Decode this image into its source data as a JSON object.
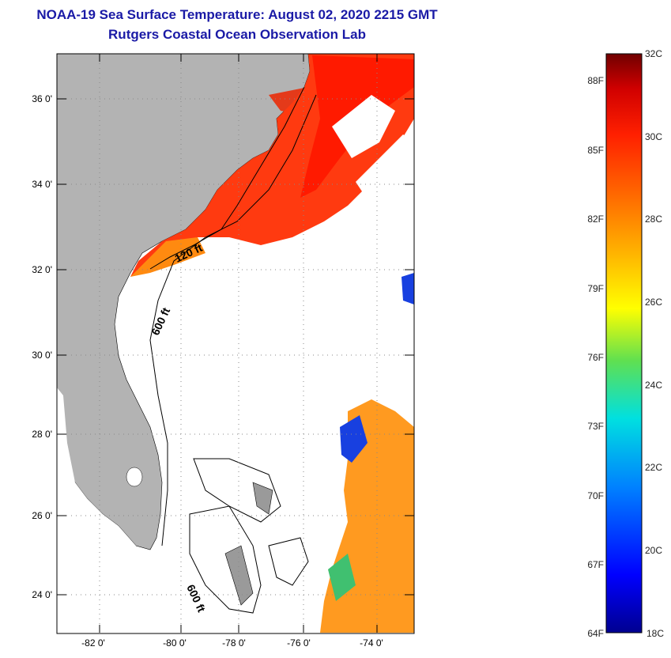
{
  "title": {
    "line1": "NOAA-19 Sea Surface Temperature:  August 02, 2020 2215 GMT",
    "line2": "Rutgers Coastal Ocean Observation Lab"
  },
  "map": {
    "lat_ticks": [
      "36 0'",
      "34 0'",
      "32 0'",
      "30 0'",
      "28 0'",
      "26 0'",
      "24 0'"
    ],
    "lon_ticks": [
      "-82 0'",
      "-80 0'",
      "-78 0'",
      "-76 0'",
      "-74 0'"
    ],
    "contour_labels": [
      "120 ft",
      "600 ft",
      "600 ft"
    ],
    "colors": {
      "land": "#b3b3b3",
      "ocean_no_data": "#ffffff",
      "grid": "#888888"
    }
  },
  "colorbar": {
    "celsius_ticks": [
      "32C",
      "30C",
      "28C",
      "26C",
      "24C",
      "22C",
      "20C",
      "18C"
    ],
    "fahrenheit_ticks": [
      "88F",
      "85F",
      "82F",
      "79F",
      "76F",
      "73F",
      "70F",
      "67F",
      "64F"
    ],
    "colors": [
      "#7a0000",
      "#d40000",
      "#ff3300",
      "#ff8800",
      "#ffcc00",
      "#ffff00",
      "#88e000",
      "#22ddaa",
      "#00ccff",
      "#0077ff",
      "#0022ee",
      "#000090"
    ]
  }
}
